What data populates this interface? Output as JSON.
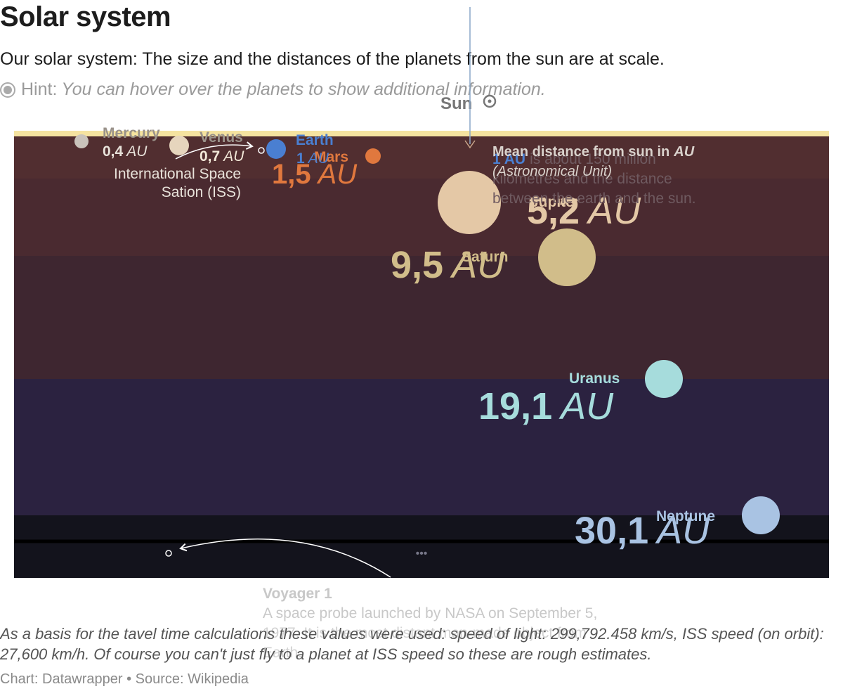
{
  "title": "Solar system",
  "subtitle": "Our solar system: The size and the distances of the planets from the sun are at scale.",
  "hint": {
    "prefix": "Hint:",
    "text": "You can hover over the planets to show additional information."
  },
  "sun_label": "Sun",
  "chart_data": {
    "type": "scatter",
    "title": "Solar system",
    "unit": "AU",
    "series": [
      {
        "name": "Mercury",
        "distance": "0,4",
        "distance_au": 0.4,
        "color": "#c9c3bb"
      },
      {
        "name": "Venus",
        "distance": "0,7",
        "distance_au": 0.7,
        "color": "#e6d5bd"
      },
      {
        "name": "Earth",
        "distance": "1",
        "distance_au": 1.0,
        "color": "#4a7fd1"
      },
      {
        "name": "Mars",
        "distance": "1,5",
        "distance_au": 1.5,
        "color": "#e0783e"
      },
      {
        "name": "Jupiter",
        "distance": "5,2",
        "distance_au": 5.2,
        "color": "#e4c8a6"
      },
      {
        "name": "Saturn",
        "distance": "9,5",
        "distance_au": 9.5,
        "color": "#d1bd8a"
      },
      {
        "name": "Uranus",
        "distance": "19,1",
        "distance_au": 19.1,
        "color": "#a6dcdc"
      },
      {
        "name": "Neptune",
        "distance": "30,1",
        "distance_au": 30.1,
        "color": "#a9c3e3"
      }
    ],
    "annotations": {
      "iss": {
        "line1": "International Space",
        "line2": "Sation (ISS)"
      },
      "mean_distance": {
        "prefix": "Mean distance from sun in",
        "unit": "AU",
        "sub": "(Astronomical Unit)"
      },
      "au_note": {
        "bold": "1 AU",
        "line1": "is about 150 million",
        "line2": "kilometres and the distance",
        "line3": "between the earth and the sun."
      },
      "voyager": {
        "title": "Voyager 1",
        "line1": "A space probe launched by NASA on September 5,",
        "line2": "1977. It is the most distant man-made object from",
        "line3": "Earth."
      },
      "more": "•••"
    },
    "colors": {
      "sun_band": "#f5e3a0",
      "bands": [
        "#4a2a30",
        "#3e2630",
        "#2b2240",
        "#1c1a2c",
        "#13131c"
      ]
    }
  },
  "notes": "As a basis for the tavel time calculations these values were used: speed of light: 299,792.458 km/s, ISS speed (on orbit): 27,600 km/h. Of course you can't just fly to a planet at ISS speed so these are rough estimates.",
  "footer": {
    "chart": "Chart: Datawrapper",
    "separator": "•",
    "source": "Source: Wikipedia"
  }
}
